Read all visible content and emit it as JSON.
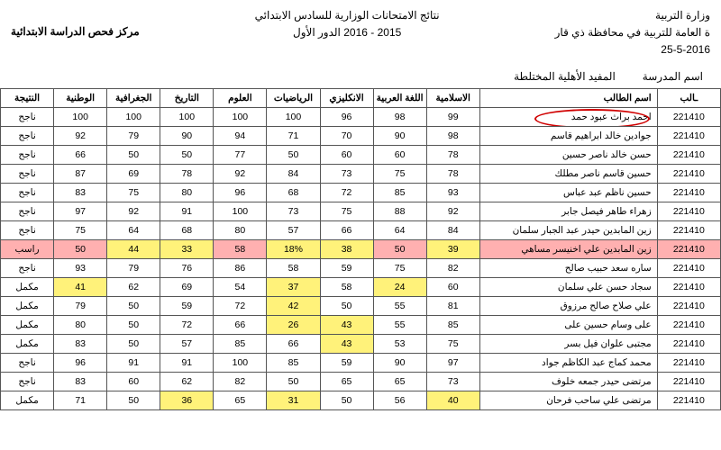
{
  "header": {
    "ministry": "وزارة التربية",
    "directorate": "ة العامة للتربية في محافظة ذي قار",
    "date": "25-5-2016",
    "title_line1": "نتائج الامتحانات الوزارية للسادس الابتدائي",
    "title_line2": "2015 - 2016 الدور الأول",
    "center": "مركز فحص الدراسة الابتدائية"
  },
  "school": {
    "label": "اسم المدرسة",
    "name": "المفيد الأهلية المختلطة"
  },
  "columns": [
    "ـالب",
    "اسم الطالب",
    "الاسلامية",
    "اللغة العربية",
    "الانكليزي",
    "الرياضيات",
    "العلوم",
    "التاريخ",
    "الجغرافية",
    "الوطنية",
    "النتيجة"
  ],
  "rows": [
    {
      "id": "221410",
      "name": "احمد براث عبود حمد",
      "g": [
        99,
        98,
        96,
        100,
        100,
        100,
        100,
        100
      ],
      "result": "ناجح",
      "circle": true
    },
    {
      "id": "221410",
      "name": "جوادين خالد ابراهيم قاسم",
      "g": [
        98,
        90,
        70,
        71,
        94,
        90,
        79,
        92
      ],
      "result": "ناجح"
    },
    {
      "id": "221410",
      "name": "حسن خالد ناصر حسين",
      "g": [
        78,
        60,
        60,
        50,
        77,
        50,
        50,
        66
      ],
      "result": "ناجح"
    },
    {
      "id": "221410",
      "name": "حسين قاسم ناصر مطلك",
      "g": [
        78,
        75,
        73,
        84,
        92,
        78,
        69,
        87
      ],
      "result": "ناجح"
    },
    {
      "id": "221410",
      "name": "حسين ناظم عبد عباس",
      "g": [
        93,
        85,
        72,
        68,
        96,
        80,
        75,
        83
      ],
      "result": "ناجح"
    },
    {
      "id": "221410",
      "name": "زهراء طاهر فيصل جابر",
      "g": [
        92,
        88,
        75,
        73,
        100,
        91,
        92,
        97
      ],
      "result": "ناجح"
    },
    {
      "id": "221410",
      "name": "زين المابدين حيدر عبد الجبار سلمان",
      "g": [
        84,
        64,
        66,
        57,
        80,
        68,
        64,
        75
      ],
      "result": "ناجح"
    },
    {
      "id": "221410",
      "name": "زين المابدين علي اخنيسر مساهي",
      "g": [
        39,
        50,
        38,
        "18%",
        58,
        33,
        44,
        50
      ],
      "result": "راسب",
      "hl": [
        0,
        2,
        3,
        5,
        6
      ],
      "fail": true
    },
    {
      "id": "221410",
      "name": "ساره سعد حبيب صالح",
      "g": [
        82,
        75,
        59,
        58,
        86,
        76,
        79,
        93
      ],
      "result": "ناجح"
    },
    {
      "id": "221410",
      "name": "سجاد حسن علي سلمان",
      "g": [
        60,
        24,
        58,
        37,
        54,
        69,
        62,
        41
      ],
      "result": "مكمل",
      "hl": [
        1,
        3,
        7
      ]
    },
    {
      "id": "221410",
      "name": "علي صلاح صالح مرزوق",
      "g": [
        81,
        55,
        50,
        42,
        72,
        59,
        50,
        79
      ],
      "result": "مكمل",
      "hl": [
        3
      ]
    },
    {
      "id": "221410",
      "name": "على وسام حسين على",
      "g": [
        85,
        55,
        43,
        26,
        66,
        72,
        50,
        80
      ],
      "result": "مكمل",
      "hl": [
        2,
        3
      ]
    },
    {
      "id": "221410",
      "name": "مجتبى علوان فيل بسر",
      "g": [
        75,
        53,
        43,
        66,
        85,
        57,
        50,
        83
      ],
      "result": "مكمل",
      "hl": [
        2
      ]
    },
    {
      "id": "221410",
      "name": "محمد كماج عبد الكاظم جواد",
      "g": [
        97,
        90,
        59,
        85,
        100,
        91,
        91,
        96
      ],
      "result": "ناجح"
    },
    {
      "id": "221410",
      "name": "مرتضى حيدر جمعه خلوف",
      "g": [
        73,
        65,
        65,
        50,
        82,
        62,
        60,
        83
      ],
      "result": "ناجح"
    },
    {
      "id": "221410",
      "name": "مرتضى علي ساحب فرحان",
      "g": [
        40,
        56,
        50,
        31,
        65,
        36,
        50,
        71
      ],
      "result": "مكمل",
      "hl": [
        0,
        3,
        5
      ]
    }
  ],
  "style": {
    "highlight_bg": "#fff27a",
    "fail_bg": "#ffb0b0",
    "border_color": "#555555",
    "circle_color": "#d00000"
  }
}
